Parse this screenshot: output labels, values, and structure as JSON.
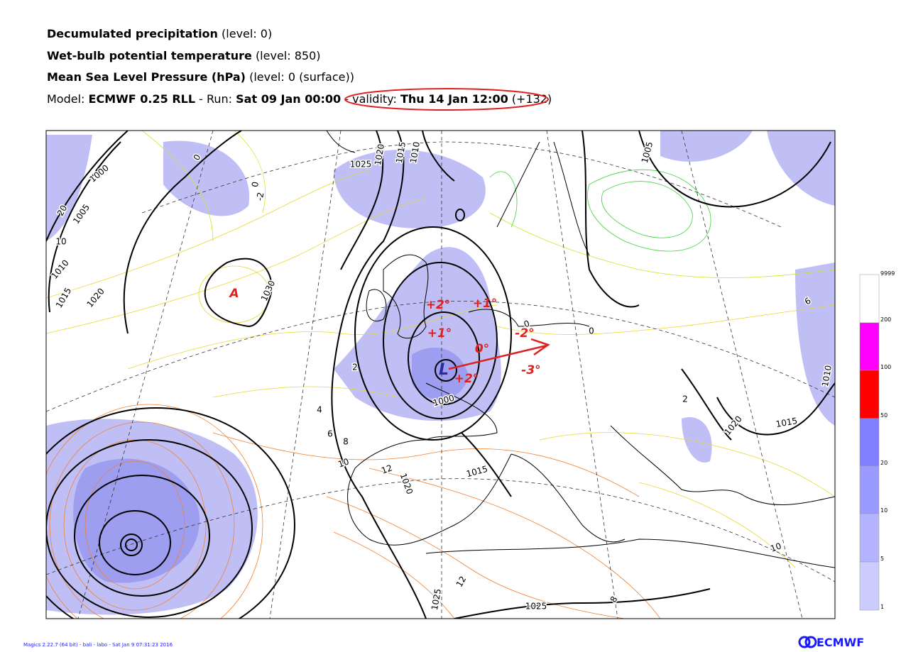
{
  "header": {
    "lines": [
      {
        "bold": "Decumulated precipitation",
        "rest": "(level: 0)"
      },
      {
        "bold": "Wet-bulb potential temperature",
        "rest": "(level: 850)"
      },
      {
        "bold": "Mean Sea Level Pressure (hPa)",
        "rest": "(level: 0 (surface))"
      }
    ],
    "model": {
      "model_label": "Model:",
      "model": "ECMWF 0.25 RLL",
      "run_label": "- Run:",
      "run": "Sat 09 Jan 00:00",
      "separator": "-",
      "validity_label": "validity:",
      "validity": "Thu 14 Jan 12:00",
      "step": "(+132)"
    }
  },
  "map": {
    "annotations": [
      "A",
      "L",
      "+2°",
      "+1°",
      "+1°",
      "0°",
      "-2°",
      "-3°",
      "+2°"
    ],
    "contour_labels": [
      "1025",
      "1020",
      "1015",
      "1010",
      "1005",
      "1000",
      "1005",
      "1010",
      "1015",
      "1020",
      "1030",
      "1000",
      "1015",
      "1020",
      "1025",
      "1025",
      "1020",
      "1015",
      "1010",
      "0",
      "0",
      "-2",
      "2",
      "4",
      "6",
      "8",
      "10",
      "12",
      "12",
      "10",
      "8",
      "6",
      "2",
      "0",
      "0",
      "10",
      "20"
    ]
  },
  "colorbar": {
    "labels": [
      9999,
      200,
      100,
      50,
      20,
      10,
      5,
      1
    ]
  },
  "footer": {
    "credit": "Magics 2.22.7 (64 bit) - bali - labo - Sat Jan  9 07:31:23 2016",
    "logo": "ECMWF"
  }
}
